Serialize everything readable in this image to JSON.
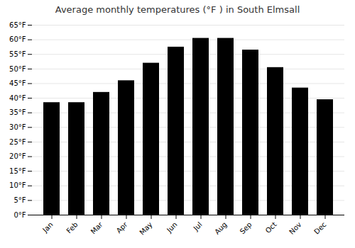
{
  "chart_data": {
    "type": "bar",
    "title": "Average monthly temperatures (°F ) in South Elmsall",
    "categories": [
      "Jan",
      "Feb",
      "Mar",
      "Apr",
      "May",
      "Jun",
      "Jul",
      "Aug",
      "Sep",
      "Oct",
      "Nov",
      "Dec"
    ],
    "values": [
      38.5,
      38.5,
      42.0,
      46.0,
      52.0,
      57.5,
      60.5,
      60.5,
      56.5,
      50.5,
      43.5,
      39.5
    ],
    "ylim": [
      0,
      65
    ],
    "yticks": [
      {
        "value": 0,
        "label": "0°F"
      },
      {
        "value": 5,
        "label": "5°F"
      },
      {
        "value": 10,
        "label": "10°F"
      },
      {
        "value": 15,
        "label": "15°F"
      },
      {
        "value": 20,
        "label": "20°F"
      },
      {
        "value": 25,
        "label": "25°F"
      },
      {
        "value": 30,
        "label": "30°F"
      },
      {
        "value": 35,
        "label": "35°F"
      },
      {
        "value": 40,
        "label": "40°F"
      },
      {
        "value": 45,
        "label": "45°F"
      },
      {
        "value": 50,
        "label": "50°F"
      },
      {
        "value": 55,
        "label": "55°F"
      },
      {
        "value": 60,
        "label": "60°F"
      },
      {
        "value": 65,
        "label": "65°F"
      }
    ],
    "grid": true
  }
}
